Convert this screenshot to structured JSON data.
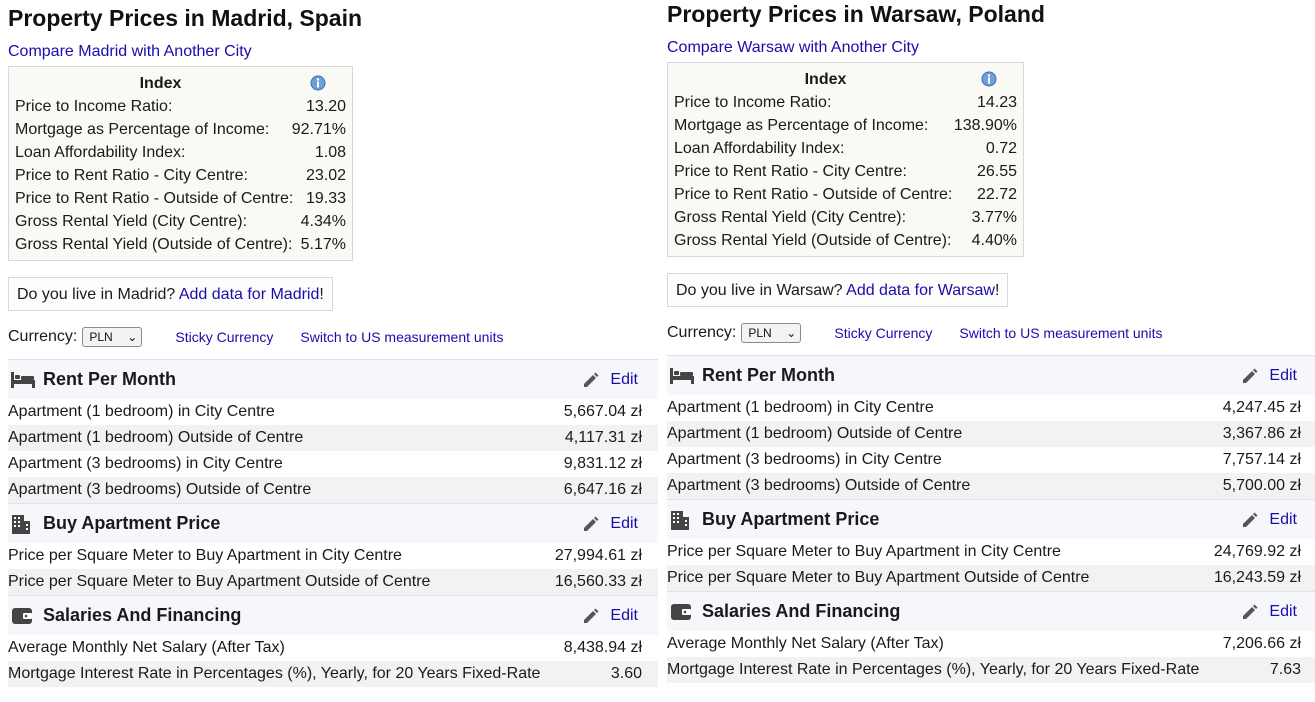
{
  "left": {
    "title": "Property Prices in Madrid, Spain",
    "compare_link": "Compare Madrid with Another City",
    "index": {
      "header": "Index",
      "rows": [
        {
          "label": "Price to Income Ratio:",
          "value": "13.20"
        },
        {
          "label": "Mortgage as Percentage of Income:",
          "value": "92.71%"
        },
        {
          "label": "Loan Affordability Index:",
          "value": "1.08"
        },
        {
          "label": "Price to Rent Ratio - City Centre:",
          "value": "23.02"
        },
        {
          "label": "Price to Rent Ratio - Outside of Centre:",
          "value": "19.33"
        },
        {
          "label": "Gross Rental Yield (City Centre):",
          "value": "4.34%"
        },
        {
          "label": "Gross Rental Yield (Outside of Centre):",
          "value": "5.17%"
        }
      ]
    },
    "live": {
      "question": "Do you live in Madrid? ",
      "link": "Add data for Madrid",
      "tail": "!"
    },
    "currency": {
      "label": "Currency:",
      "selected": "PLN",
      "sticky": "Sticky Currency",
      "units": "Switch to US measurement units"
    },
    "sections": [
      {
        "title": "Rent Per Month",
        "icon": "bed-icon",
        "edit": "Edit",
        "rows": [
          {
            "label": "Apartment (1 bedroom) in City Centre",
            "value": "5,667.04 zł"
          },
          {
            "label": "Apartment (1 bedroom) Outside of Centre",
            "value": "4,117.31 zł"
          },
          {
            "label": "Apartment (3 bedrooms) in City Centre",
            "value": "9,831.12 zł"
          },
          {
            "label": "Apartment (3 bedrooms) Outside of Centre",
            "value": "6,647.16 zł"
          }
        ]
      },
      {
        "title": "Buy Apartment Price",
        "icon": "building-icon",
        "edit": "Edit",
        "rows": [
          {
            "label": "Price per Square Meter to Buy Apartment in City Centre",
            "value": "27,994.61 zł"
          },
          {
            "label": "Price per Square Meter to Buy Apartment Outside of Centre",
            "value": "16,560.33 zł"
          }
        ]
      },
      {
        "title": "Salaries And Financing",
        "icon": "wallet-icon",
        "edit": "Edit",
        "rows": [
          {
            "label": "Average Monthly Net Salary (After Tax)",
            "value": "8,438.94 zł"
          },
          {
            "label": "Mortgage Interest Rate in Percentages (%), Yearly, for 20 Years Fixed-Rate",
            "value": "3.60"
          }
        ]
      }
    ]
  },
  "right": {
    "title": "Property Prices in Warsaw, Poland",
    "compare_link": "Compare Warsaw with Another City",
    "index": {
      "header": "Index",
      "rows": [
        {
          "label": "Price to Income Ratio:",
          "value": "14.23"
        },
        {
          "label": "Mortgage as Percentage of Income:",
          "value": "138.90%"
        },
        {
          "label": "Loan Affordability Index:",
          "value": "0.72"
        },
        {
          "label": "Price to Rent Ratio - City Centre:",
          "value": "26.55"
        },
        {
          "label": "Price to Rent Ratio - Outside of Centre:",
          "value": "22.72"
        },
        {
          "label": "Gross Rental Yield (City Centre):",
          "value": "3.77%"
        },
        {
          "label": "Gross Rental Yield (Outside of Centre):",
          "value": "4.40%"
        }
      ]
    },
    "live": {
      "question": "Do you live in Warsaw? ",
      "link": "Add data for Warsaw",
      "tail": "!"
    },
    "currency": {
      "label": "Currency:",
      "selected": "PLN",
      "sticky": "Sticky Currency",
      "units": "Switch to US measurement units"
    },
    "sections": [
      {
        "title": "Rent Per Month",
        "icon": "bed-icon",
        "edit": "Edit",
        "rows": [
          {
            "label": "Apartment (1 bedroom) in City Centre",
            "value": "4,247.45 zł"
          },
          {
            "label": "Apartment (1 bedroom) Outside of Centre",
            "value": "3,367.86 zł"
          },
          {
            "label": "Apartment (3 bedrooms) in City Centre",
            "value": "7,757.14 zł"
          },
          {
            "label": "Apartment (3 bedrooms) Outside of Centre",
            "value": "5,700.00 zł"
          }
        ]
      },
      {
        "title": "Buy Apartment Price",
        "icon": "building-icon",
        "edit": "Edit",
        "rows": [
          {
            "label": "Price per Square Meter to Buy Apartment in City Centre",
            "value": "24,769.92 zł"
          },
          {
            "label": "Price per Square Meter to Buy Apartment Outside of Centre",
            "value": "16,243.59 zł"
          }
        ]
      },
      {
        "title": "Salaries And Financing",
        "icon": "wallet-icon",
        "edit": "Edit",
        "rows": [
          {
            "label": "Average Monthly Net Salary (After Tax)",
            "value": "7,206.66 zł"
          },
          {
            "label": "Mortgage Interest Rate in Percentages (%), Yearly, for 20 Years Fixed-Rate",
            "value": "7.63"
          }
        ]
      }
    ]
  }
}
